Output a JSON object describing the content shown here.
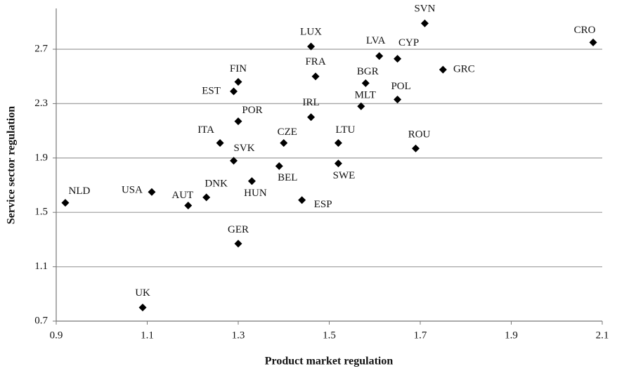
{
  "chart_data": {
    "type": "scatter",
    "x_label": "Product market regulation",
    "y_label": "Service sector regulation",
    "xlim": [
      0.9,
      2.1
    ],
    "xticks": [
      0.9,
      1.1,
      1.3,
      1.5,
      1.7,
      1.9,
      2.1
    ],
    "ylim": [
      0.7,
      3.0
    ],
    "yticks": [
      0.7,
      1.1,
      1.5,
      1.9,
      2.3,
      2.7
    ],
    "grid": true,
    "color": "#000000",
    "labels": [
      "SVN",
      "CRO",
      "LUX",
      "LVA",
      "CYP",
      "GRC",
      "FRA",
      "BGR",
      "FIN",
      "EST",
      "POL",
      "MLT",
      "IRL",
      "POR",
      "ITA",
      "CZE",
      "LTU",
      "ROU",
      "SVK",
      "SWE",
      "BEL",
      "HUN",
      "USA",
      "DNK",
      "NLD",
      "AUT",
      "ESP",
      "GER",
      "UK"
    ],
    "x": [
      1.71,
      2.08,
      1.46,
      1.61,
      1.65,
      1.75,
      1.47,
      1.58,
      1.3,
      1.29,
      1.65,
      1.57,
      1.46,
      1.3,
      1.26,
      1.4,
      1.52,
      1.69,
      1.29,
      1.52,
      1.39,
      1.33,
      1.11,
      1.23,
      0.92,
      1.19,
      1.44,
      1.3,
      1.09
    ],
    "y": [
      2.89,
      2.75,
      2.72,
      2.65,
      2.63,
      2.55,
      2.5,
      2.45,
      2.46,
      2.39,
      2.33,
      2.28,
      2.2,
      2.17,
      2.01,
      2.01,
      2.01,
      1.97,
      1.88,
      1.86,
      1.84,
      1.73,
      1.65,
      1.61,
      1.57,
      1.55,
      1.59,
      1.27,
      0.8
    ]
  }
}
